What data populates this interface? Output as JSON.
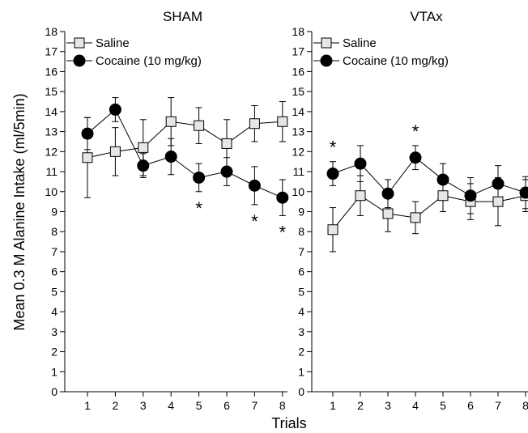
{
  "chart_data": {
    "type": "line",
    "ylabel": "Mean 0.3 M Alanine Intake (ml/5min)",
    "xlabel": "Trials",
    "x": [
      1,
      2,
      3,
      4,
      5,
      6,
      7,
      8
    ],
    "ylim": [
      0,
      18
    ],
    "y_ticks": [
      "0",
      "1",
      "2",
      "3",
      "4",
      "5",
      "6",
      "7",
      "8",
      "9",
      "10",
      "11",
      "12",
      "13",
      "14",
      "15",
      "16",
      "17",
      "18"
    ],
    "panels": [
      {
        "title": "SHAM",
        "legend": [
          "Saline",
          "Cocaine (10 mg/kg)"
        ],
        "legend_placement": "top-left",
        "series": [
          {
            "name": "Saline",
            "marker": "square-open",
            "values": [
              11.7,
              12.0,
              12.2,
              13.5,
              13.3,
              12.4,
              13.4,
              13.5
            ],
            "error": [
              2.0,
              1.2,
              1.4,
              1.2,
              0.9,
              1.2,
              0.9,
              1.0
            ]
          },
          {
            "name": "Cocaine (10 mg/kg)",
            "marker": "circle-filled",
            "values": [
              12.9,
              14.1,
              11.3,
              11.75,
              10.7,
              11.0,
              10.3,
              9.7
            ],
            "error": [
              0.8,
              0.6,
              0.6,
              0.9,
              0.7,
              0.7,
              0.95,
              0.9
            ]
          }
        ],
        "significance": [
          5,
          7,
          8
        ],
        "star_label": "*"
      },
      {
        "title": "VTAx",
        "legend": [
          "Saline",
          "Cocaine (10 mg/kg)"
        ],
        "legend_placement": "top-left",
        "series": [
          {
            "name": "Saline",
            "marker": "square-open",
            "values": [
              8.1,
              9.8,
              8.9,
              8.7,
              9.8,
              9.5,
              9.5,
              9.8
            ],
            "error": [
              1.1,
              1.0,
              0.9,
              0.8,
              0.8,
              0.9,
              1.2,
              0.8
            ]
          },
          {
            "name": "Cocaine (10 mg/kg)",
            "marker": "circle-filled",
            "values": [
              10.9,
              11.4,
              9.9,
              11.7,
              10.6,
              9.8,
              10.4,
              9.95
            ],
            "error": [
              0.6,
              0.9,
              0.7,
              0.6,
              0.8,
              0.9,
              0.9,
              0.8
            ]
          }
        ],
        "significance": [
          1,
          4
        ],
        "star_label": "*"
      }
    ]
  },
  "colors": {
    "line": "#000000",
    "saline_fill": "#e6e6e6",
    "cocaine_fill": "#000000"
  }
}
